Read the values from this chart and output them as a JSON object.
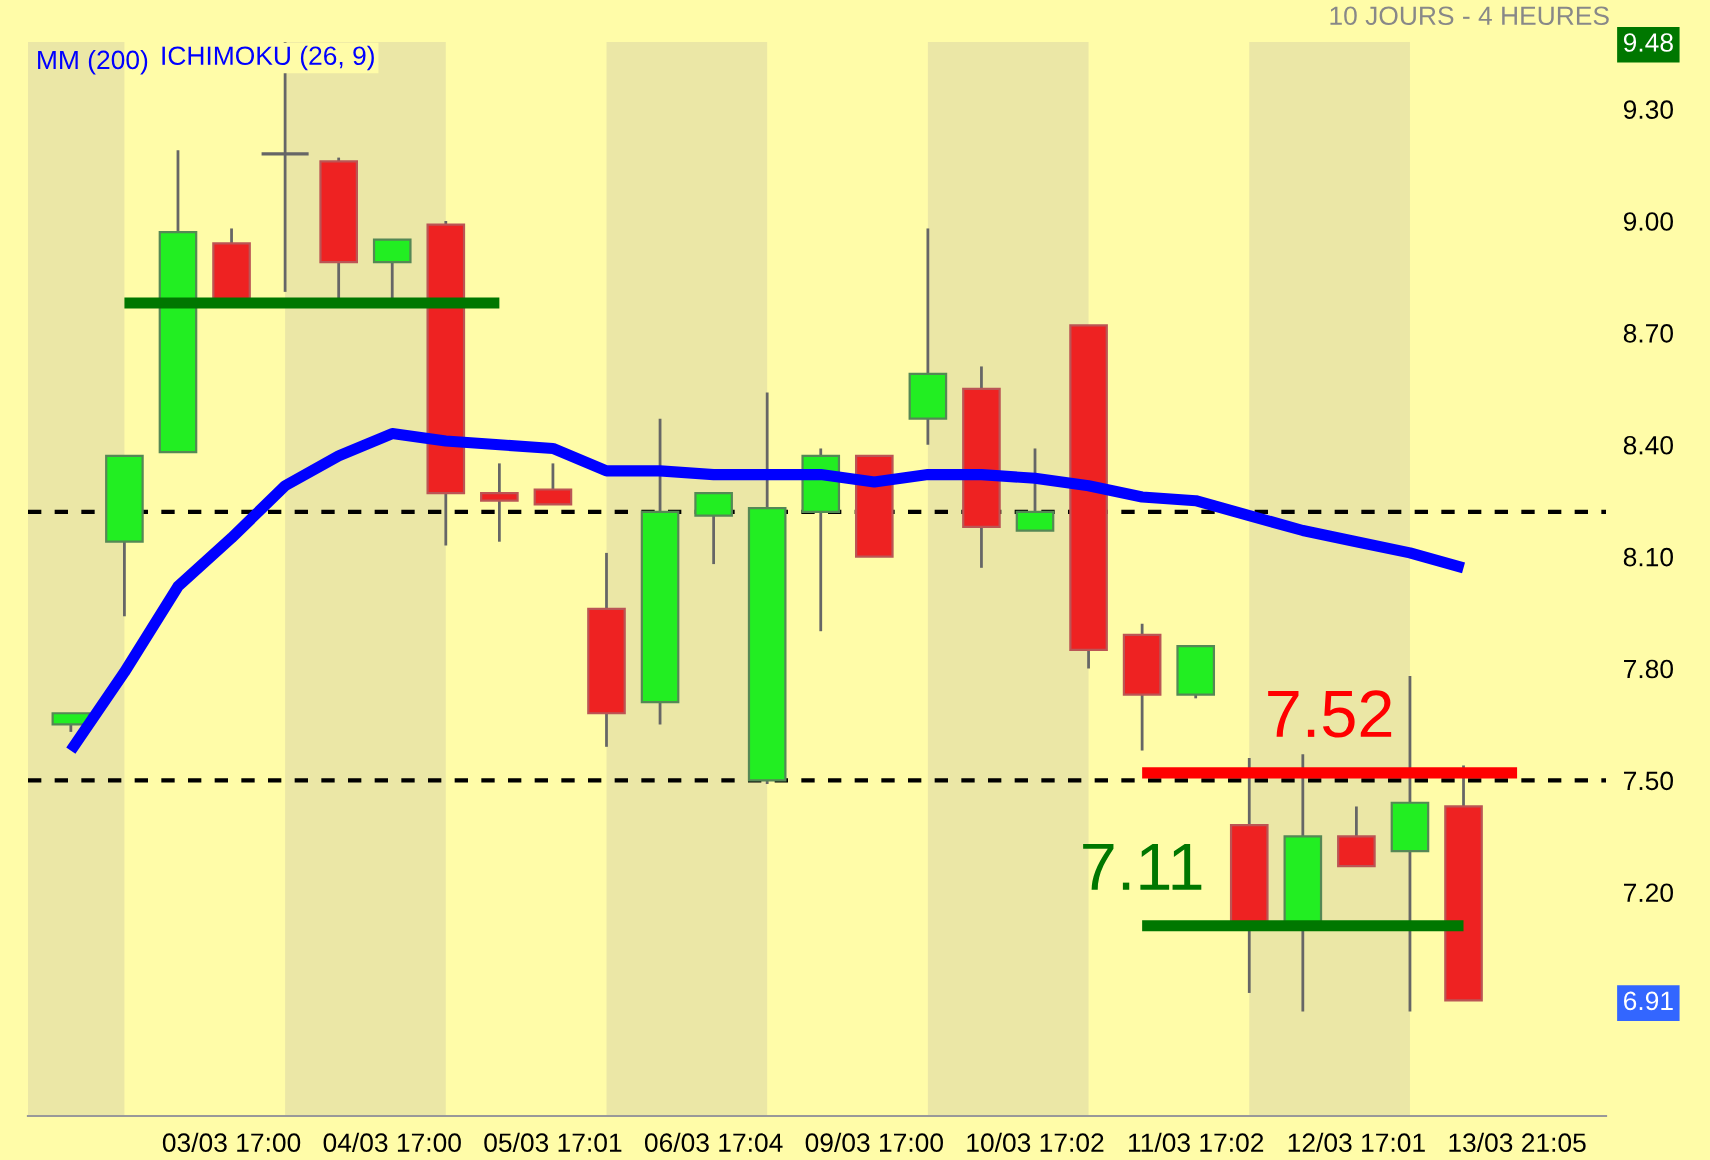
{
  "chart_data": {
    "type": "candlestick",
    "subtitle": "10 JOURS - 4 HEURES",
    "categories": [
      null,
      null,
      null,
      "03/03 17:00",
      null,
      null,
      "04/03 17:00",
      null,
      null,
      "05/03 17:01",
      null,
      null,
      "06/03 17:04",
      null,
      null,
      "09/03 17:00",
      null,
      null,
      "10/03 17:02",
      null,
      null,
      "11/03 17:02",
      null,
      null,
      "12/03 17:01",
      null,
      null,
      "13/03 21:05"
    ],
    "ohlc": [
      [
        7.65,
        7.68,
        7.63,
        7.68
      ],
      [
        8.14,
        8.37,
        7.94,
        8.37
      ],
      [
        8.38,
        9.19,
        8.38,
        8.97
      ],
      [
        8.94,
        8.98,
        8.78,
        8.78
      ],
      [
        9.18,
        9.48,
        8.81,
        9.18
      ],
      [
        9.16,
        9.17,
        8.78,
        8.89
      ],
      [
        8.89,
        8.95,
        8.79,
        8.95
      ],
      [
        8.99,
        9.0,
        8.13,
        8.27
      ],
      [
        8.27,
        8.35,
        8.14,
        8.25
      ],
      [
        8.28,
        8.35,
        8.24,
        8.24
      ],
      [
        7.96,
        8.11,
        7.59,
        7.68
      ],
      [
        7.71,
        8.47,
        7.65,
        8.22
      ],
      [
        8.21,
        8.27,
        8.08,
        8.27
      ],
      [
        7.5,
        8.54,
        7.49,
        8.23
      ],
      [
        8.22,
        8.39,
        7.9,
        8.37
      ],
      [
        8.37,
        8.37,
        8.1,
        8.1
      ],
      [
        8.47,
        8.98,
        8.4,
        8.59
      ],
      [
        8.55,
        8.61,
        8.07,
        8.18
      ],
      [
        8.17,
        8.39,
        8.17,
        8.22
      ],
      [
        8.72,
        8.72,
        7.8,
        7.85
      ],
      [
        7.89,
        7.92,
        7.58,
        7.73
      ],
      [
        7.73,
        7.86,
        7.72,
        7.86
      ],
      [
        7.38,
        7.56,
        6.93,
        7.1
      ],
      [
        7.1,
        7.57,
        6.88,
        7.35
      ],
      [
        7.35,
        7.43,
        7.27,
        7.27
      ],
      [
        7.31,
        7.78,
        6.88,
        7.44
      ],
      [
        7.43,
        7.54,
        6.91,
        6.91
      ],
      null
    ],
    "colors": [
      "#22ee22",
      "#22ee22",
      "#22ee22",
      "#ee2222",
      "#666666",
      "#ee2222",
      "#22ee22",
      "#ee2222",
      "#ee2222",
      "#ee2222",
      "#ee2222",
      "#22ee22",
      "#22ee22",
      "#22ee22",
      "#22ee22",
      "#ee2222",
      "#22ee22",
      "#ee2222",
      "#22ee22",
      "#ee2222",
      "#ee2222",
      "#22ee22",
      "#ee2222",
      "#22ee22",
      "#ee2222",
      "#22ee22",
      "#ee2222",
      null
    ],
    "series": [
      {
        "type": "line",
        "name": "MM (200)",
        "color": "#0000ff",
        "values": [
          7.58,
          7.79,
          8.02,
          8.15,
          8.29,
          8.37,
          8.43,
          8.41,
          8.4,
          8.39,
          8.33,
          8.33,
          8.32,
          8.32,
          8.32,
          8.3,
          8.32,
          8.32,
          8.31,
          8.29,
          8.26,
          8.25,
          8.21,
          8.17,
          8.14,
          8.11,
          8.07,
          null
        ]
      },
      {
        "type": "line",
        "color": "#007700",
        "values": [
          null,
          8.78,
          8.78,
          8.78,
          8.78,
          8.78,
          8.78,
          8.78,
          8.78,
          null,
          null,
          null,
          null,
          null,
          null,
          null,
          null,
          null,
          null,
          null,
          null,
          null,
          null,
          null,
          null,
          null,
          null,
          null
        ]
      },
      {
        "type": "line",
        "color": "#ff0000",
        "values": [
          null,
          null,
          null,
          null,
          null,
          null,
          null,
          null,
          null,
          null,
          null,
          null,
          null,
          null,
          null,
          null,
          null,
          null,
          null,
          null,
          7.52,
          7.52,
          7.52,
          7.52,
          7.52,
          7.52,
          7.52,
          7.52
        ]
      },
      {
        "type": "line",
        "color": "#007700",
        "values": [
          null,
          null,
          null,
          null,
          null,
          null,
          null,
          null,
          null,
          null,
          null,
          null,
          null,
          null,
          null,
          null,
          null,
          null,
          null,
          null,
          7.11,
          7.11,
          7.11,
          7.11,
          7.11,
          7.11,
          7.11,
          null
        ]
      }
    ],
    "annotations": [
      "ICHIMOKU (26, 9)",
      {
        "text": "7.52",
        "y": 7.52
      },
      {
        "text": "7.11",
        "y": 7.11
      }
    ],
    "ref_lines": [
      {
        "axis": "y",
        "value": 8.22,
        "color": "#000000",
        "line_style": "dashed"
      },
      {
        "axis": "y",
        "value": 7.5,
        "color": "#000000",
        "line_style": "dashed"
      }
    ],
    "ylim": [
      6.6,
      9.48
    ],
    "yticks": [
      {
        "value": 6.91,
        "label": "6.91"
      },
      {
        "value": 7.2,
        "label": "7.20"
      },
      {
        "value": 7.5,
        "label": "7.50"
      },
      {
        "value": 7.8,
        "label": "7.80"
      },
      {
        "value": 8.1,
        "label": "8.10"
      },
      {
        "value": 8.4,
        "label": "8.40"
      },
      {
        "value": 8.7,
        "label": "8.70"
      },
      {
        "value": 9.0,
        "label": "9.00"
      },
      {
        "value": 9.3,
        "label": "9.30"
      },
      {
        "value": 9.48,
        "label": "9.48"
      }
    ],
    "legend": "top left",
    "grid": false
  }
}
